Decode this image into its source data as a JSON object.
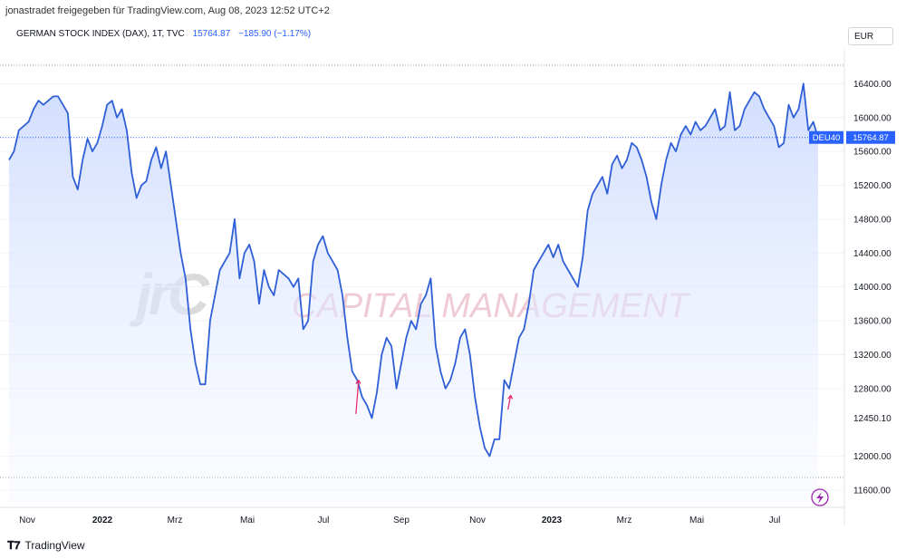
{
  "header": {
    "attribution": "jonastradet freigegeben für TradingView.com, Aug 08, 2023 12:52 UTC+2"
  },
  "symbol": {
    "name": "GERMAN STOCK INDEX (DAX), 1T, TVC",
    "last": "15764.87",
    "change": "−185.90 (−1.17%)"
  },
  "currency": "EUR",
  "watermark": {
    "letters": "jrC",
    "text": "CAPITAL MANAGEMENT"
  },
  "footer": {
    "brand": "TradingView"
  },
  "colors": {
    "line": "#2f5fd6",
    "fill_top": "#cfdcff",
    "price_tag": "#2962ff",
    "annot": "#e91e63",
    "bolt": "#9c27b0"
  },
  "chart_data": {
    "type": "area",
    "series": [
      {
        "values": [
          15500,
          15600,
          15850,
          15900,
          15950,
          16100,
          16200,
          16150,
          16200,
          16250,
          16250,
          16150,
          16050,
          15300,
          15150,
          15500,
          15750,
          15600,
          15700,
          15900,
          16150,
          16200,
          16000,
          16100,
          15850,
          15350,
          15050,
          15200,
          15250,
          15500,
          15650,
          15400,
          15600,
          15200,
          14800,
          14400,
          14100,
          13500,
          13100,
          12850,
          12850,
          13600,
          13900,
          14200,
          14300,
          14400,
          14800,
          14100,
          14400,
          14500,
          14300,
          13800,
          14200,
          14000,
          13900,
          14200,
          14150,
          14100,
          14000,
          14100,
          13500,
          13600,
          14300,
          14500,
          14600,
          14400,
          14300,
          14200,
          13900,
          13400,
          13000,
          12900,
          12700,
          12600,
          12450,
          12750,
          13200,
          13400,
          13300,
          12800,
          13100,
          13400,
          13600,
          13500,
          13800,
          13900,
          14100,
          13300,
          13000,
          12800,
          12900,
          13100,
          13400,
          13500,
          13200,
          12700,
          12350,
          12100,
          12000,
          12200,
          12200,
          12900,
          12800,
          13100,
          13400,
          13500,
          13800,
          14200,
          14300,
          14400,
          14500,
          14350,
          14500,
          14300,
          14200,
          14100,
          14000,
          14350,
          14900,
          15100,
          15200,
          15300,
          15100,
          15450,
          15550,
          15400,
          15500,
          15700,
          15650,
          15500,
          15300,
          15000,
          14800,
          15200,
          15500,
          15700,
          15600,
          15800,
          15900,
          15800,
          15950,
          15850,
          15900,
          16000,
          16100,
          15850,
          15900,
          16300,
          15850,
          15900,
          16100,
          16200,
          16300,
          16250,
          16100,
          16000,
          15900,
          15650,
          15700,
          16150,
          16000,
          16100,
          16400,
          15850,
          15950,
          15764
        ]
      }
    ],
    "y_ticks": [
      "16400.00",
      "16000.00",
      "15600.00",
      "15200.00",
      "14800.00",
      "14400.00",
      "14000.00",
      "13600.00",
      "13200.00",
      "12800.00",
      "12450.10",
      "12000.00",
      "11600.00"
    ],
    "x_ticks": [
      "Nov",
      "2022",
      "Mrz",
      "Mai",
      "Jul",
      "Sep",
      "Nov",
      "2023",
      "Mrz",
      "Mai",
      "Jul"
    ],
    "ylim": [
      11450,
      16800
    ],
    "last_label": "DEU40",
    "last_value": "15764.87",
    "annotations": [
      {
        "type": "arrow",
        "x_index": 70,
        "y_from": 12500,
        "y_to": 12900
      },
      {
        "type": "arrow",
        "x_index": 101,
        "y_from": 12550,
        "y_to": 12720
      }
    ]
  }
}
